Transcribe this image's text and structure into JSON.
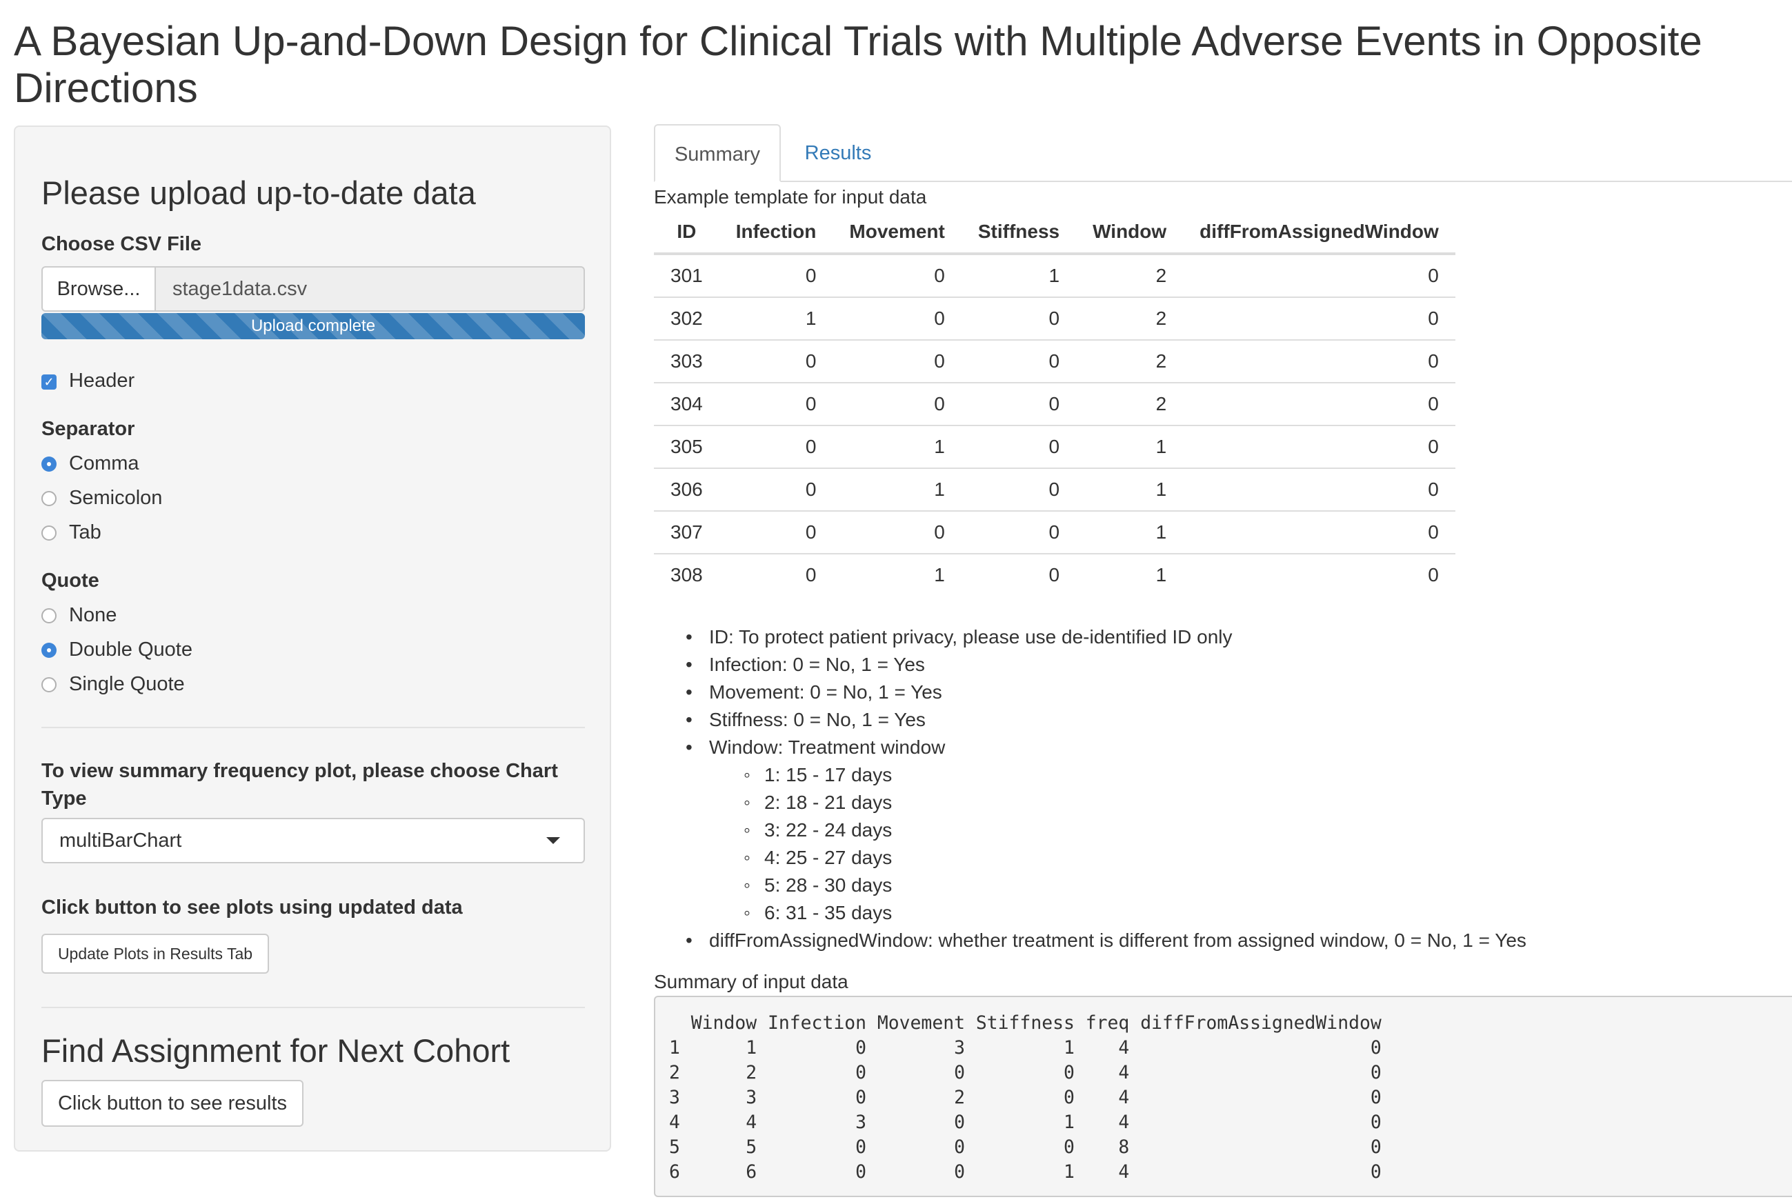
{
  "app": {
    "title": "A Bayesian Up-and-Down Design for Clinical Trials with Multiple Adverse Events in Opposite Directions"
  },
  "sidebar": {
    "upload_heading": "Please upload up-to-date data",
    "file_label": "Choose CSV File",
    "browse_label": "Browse...",
    "file_name": "stage1data.csv",
    "upload_status": "Upload complete",
    "upload_progress_pct": 100,
    "header_checkbox": {
      "label": "Header",
      "checked": true
    },
    "separator": {
      "label": "Separator",
      "options": [
        "Comma",
        "Semicolon",
        "Tab"
      ],
      "selected": "Comma"
    },
    "quote": {
      "label": "Quote",
      "options": [
        "None",
        "Double Quote",
        "Single Quote"
      ],
      "selected": "Double Quote"
    },
    "chart_type_label": "To view summary frequency plot, please choose Chart Type",
    "chart_type_value": "multiBarChart",
    "update_label": "Click button to see plots using updated data",
    "update_button": "Update Plots in Results Tab",
    "assignment_heading": "Find Assignment for Next Cohort",
    "results_button": "Click button to see results"
  },
  "main": {
    "tabs": [
      {
        "label": "Summary",
        "active": true
      },
      {
        "label": "Results",
        "active": false
      }
    ],
    "template_caption": "Example template for input data",
    "table": {
      "headers": [
        "ID",
        "Infection",
        "Movement",
        "Stiffness",
        "Window",
        "diffFromAssignedWindow"
      ],
      "rows": [
        [
          "301",
          "0",
          "0",
          "1",
          "2",
          "0"
        ],
        [
          "302",
          "1",
          "0",
          "0",
          "2",
          "0"
        ],
        [
          "303",
          "0",
          "0",
          "0",
          "2",
          "0"
        ],
        [
          "304",
          "0",
          "0",
          "0",
          "2",
          "0"
        ],
        [
          "305",
          "0",
          "1",
          "0",
          "1",
          "0"
        ],
        [
          "306",
          "0",
          "1",
          "0",
          "1",
          "0"
        ],
        [
          "307",
          "0",
          "0",
          "0",
          "1",
          "0"
        ],
        [
          "308",
          "0",
          "1",
          "0",
          "1",
          "0"
        ]
      ]
    },
    "definitions": [
      "ID: To protect patient privacy, please use de-identified ID only",
      "Infection: 0 = No, 1 = Yes",
      "Movement: 0 = No, 1 = Yes",
      "Stiffness: 0 = No, 1 = Yes",
      "Window: Treatment window",
      "diffFromAssignedWindow: whether treatment is different from assigned window, 0 = No, 1 = Yes"
    ],
    "windows": [
      "1: 15 - 17 days",
      "2: 18 - 21 days",
      "3: 22 - 24 days",
      "4: 25 - 27 days",
      "5: 28 - 30 days",
      "6: 31 - 35 days"
    ],
    "summary_caption": "Summary of input data",
    "summary_lines": [
      "  Window Infection Movement Stiffness freq diffFromAssignedWindow",
      "1      1         0        3         1    4                      0",
      "2      2         0        0         0    4                      0",
      "3      3         0        2         0    4                      0",
      "4      4         3        0         1    4                      0",
      "5      5         0        0         0    8                      0",
      "6      6         0        0         1    4                      0"
    ]
  }
}
